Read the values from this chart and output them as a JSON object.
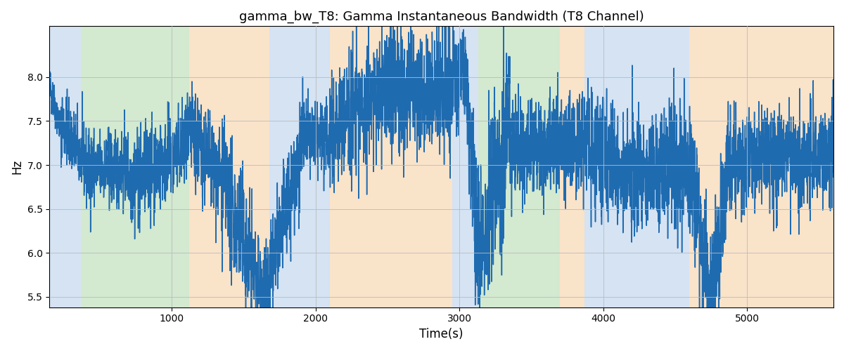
{
  "title": "gamma_bw_T8: Gamma Instantaneous Bandwidth (T8 Channel)",
  "xlabel": "Time(s)",
  "ylabel": "Hz",
  "xlim": [
    150,
    5600
  ],
  "ylim": [
    5.38,
    8.58
  ],
  "yticks": [
    5.5,
    6.0,
    6.5,
    7.0,
    7.5,
    8.0
  ],
  "xticks": [
    1000,
    2000,
    3000,
    4000,
    5000
  ],
  "line_color": "#1f6bb0",
  "line_width": 1.1,
  "grid_color": "#bbbbbb",
  "background_color": "#ffffff",
  "bands": [
    {
      "xmin": 150,
      "xmax": 370,
      "color": "#adc8e8",
      "alpha": 0.5
    },
    {
      "xmin": 370,
      "xmax": 1120,
      "color": "#a8d5a2",
      "alpha": 0.5
    },
    {
      "xmin": 1120,
      "xmax": 1680,
      "color": "#f5c995",
      "alpha": 0.5
    },
    {
      "xmin": 1680,
      "xmax": 2100,
      "color": "#adc8e8",
      "alpha": 0.5
    },
    {
      "xmin": 2100,
      "xmax": 2950,
      "color": "#f5c995",
      "alpha": 0.5
    },
    {
      "xmin": 2950,
      "xmax": 3130,
      "color": "#adc8e8",
      "alpha": 0.5
    },
    {
      "xmin": 3130,
      "xmax": 3700,
      "color": "#a8d5a2",
      "alpha": 0.5
    },
    {
      "xmin": 3700,
      "xmax": 3870,
      "color": "#f5c995",
      "alpha": 0.5
    },
    {
      "xmin": 3870,
      "xmax": 4600,
      "color": "#adc8e8",
      "alpha": 0.5
    },
    {
      "xmin": 4600,
      "xmax": 4870,
      "color": "#f5c995",
      "alpha": 0.5
    },
    {
      "xmin": 4870,
      "xmax": 5600,
      "color": "#f5c995",
      "alpha": 0.5
    }
  ],
  "seed": 42
}
